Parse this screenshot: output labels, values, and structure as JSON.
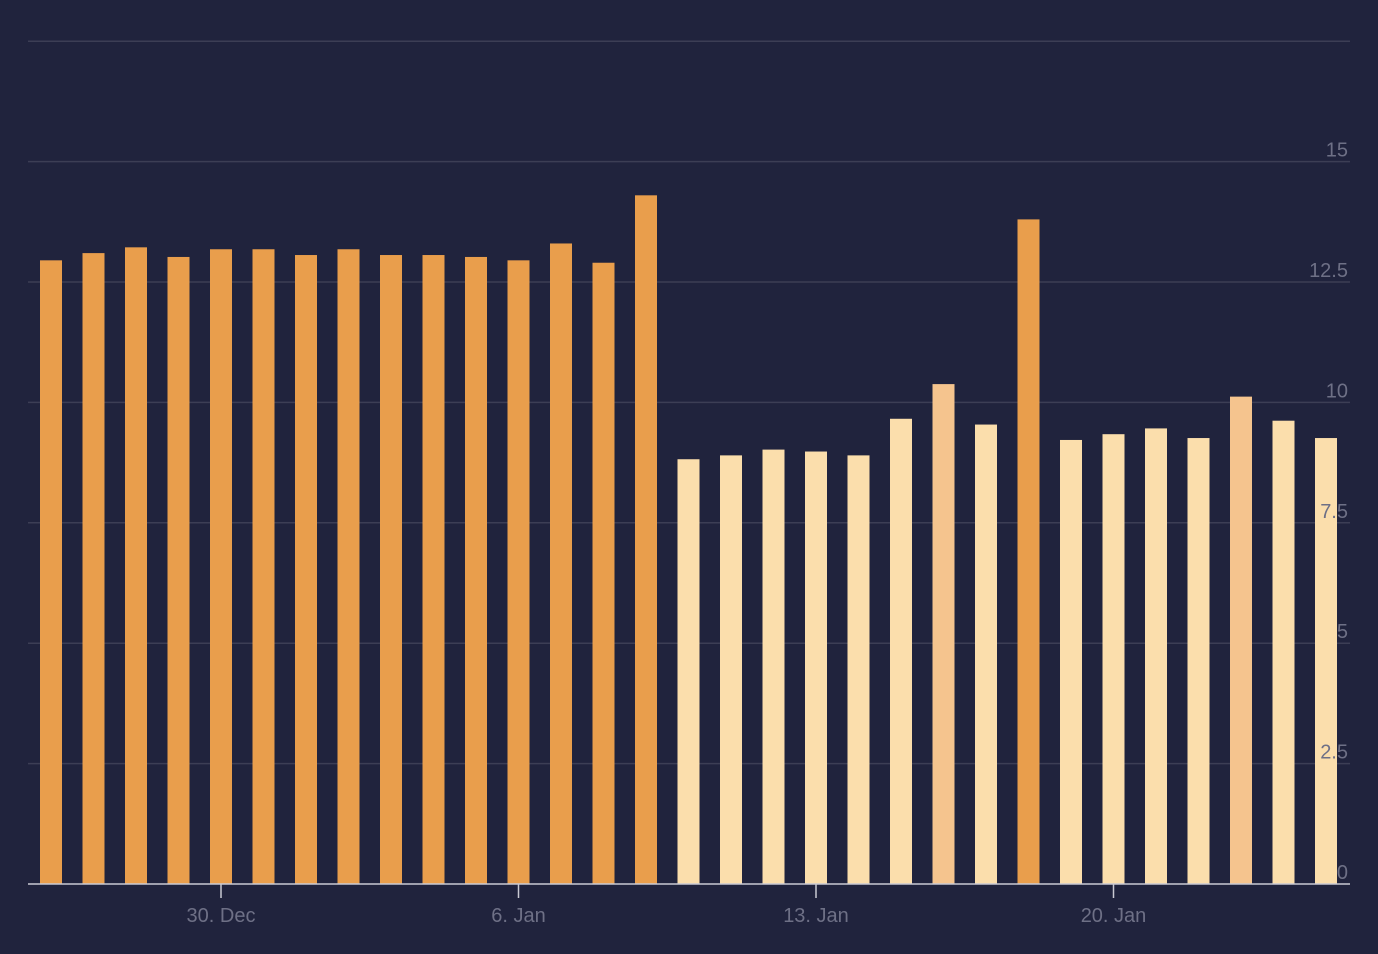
{
  "chart_data": {
    "type": "bar",
    "title": "",
    "xlabel": "",
    "ylabel": "",
    "ylim": [
      0,
      17.5
    ],
    "y_ticks": [
      0,
      2.5,
      5,
      7.5,
      10,
      12.5,
      15
    ],
    "y_tick_labels": [
      "0",
      "2.5",
      "5",
      "7.5",
      "10",
      "12.5",
      "15"
    ],
    "x_start": "2024-12-26",
    "x_tick_labels": [
      {
        "date": "2024-12-30",
        "label": "30. Dec"
      },
      {
        "date": "2025-01-06",
        "label": "6. Jan"
      },
      {
        "date": "2025-01-13",
        "label": "13. Jan"
      },
      {
        "date": "2025-01-20",
        "label": "20. Jan"
      }
    ],
    "grid": true,
    "legend": "none",
    "colors": {
      "background": "#20233d",
      "dark": "#e99e4c",
      "medium": "#f5c48e",
      "light": "#fbdeac"
    },
    "bars": [
      {
        "date": "2024-12-26",
        "value": 12.95,
        "shade": "dark"
      },
      {
        "date": "2024-12-27",
        "value": 13.1,
        "shade": "dark"
      },
      {
        "date": "2024-12-28",
        "value": 13.22,
        "shade": "dark"
      },
      {
        "date": "2024-12-29",
        "value": 13.02,
        "shade": "dark"
      },
      {
        "date": "2024-12-30",
        "value": 13.18,
        "shade": "dark"
      },
      {
        "date": "2024-12-31",
        "value": 13.18,
        "shade": "dark"
      },
      {
        "date": "2025-01-01",
        "value": 13.06,
        "shade": "dark"
      },
      {
        "date": "2025-01-02",
        "value": 13.18,
        "shade": "dark"
      },
      {
        "date": "2025-01-03",
        "value": 13.06,
        "shade": "dark"
      },
      {
        "date": "2025-01-04",
        "value": 13.06,
        "shade": "dark"
      },
      {
        "date": "2025-01-05",
        "value": 13.02,
        "shade": "dark"
      },
      {
        "date": "2025-01-06",
        "value": 12.95,
        "shade": "dark"
      },
      {
        "date": "2025-01-07",
        "value": 13.3,
        "shade": "dark"
      },
      {
        "date": "2025-01-08",
        "value": 12.9,
        "shade": "dark"
      },
      {
        "date": "2025-01-09",
        "value": 14.3,
        "shade": "dark"
      },
      {
        "date": "2025-01-10",
        "value": 8.82,
        "shade": "light"
      },
      {
        "date": "2025-01-11",
        "value": 8.9,
        "shade": "light"
      },
      {
        "date": "2025-01-12",
        "value": 9.02,
        "shade": "light"
      },
      {
        "date": "2025-01-13",
        "value": 8.98,
        "shade": "light"
      },
      {
        "date": "2025-01-14",
        "value": 8.9,
        "shade": "light"
      },
      {
        "date": "2025-01-15",
        "value": 9.66,
        "shade": "light"
      },
      {
        "date": "2025-01-16",
        "value": 10.38,
        "shade": "medium"
      },
      {
        "date": "2025-01-17",
        "value": 9.54,
        "shade": "light"
      },
      {
        "date": "2025-01-18",
        "value": 13.8,
        "shade": "dark"
      },
      {
        "date": "2025-01-19",
        "value": 9.22,
        "shade": "light"
      },
      {
        "date": "2025-01-20",
        "value": 9.34,
        "shade": "light"
      },
      {
        "date": "2025-01-21",
        "value": 9.46,
        "shade": "light"
      },
      {
        "date": "2025-01-22",
        "value": 9.26,
        "shade": "light"
      },
      {
        "date": "2025-01-23",
        "value": 10.12,
        "shade": "medium"
      },
      {
        "date": "2025-01-24",
        "value": 9.62,
        "shade": "light"
      },
      {
        "date": "2025-01-25",
        "value": 9.26,
        "shade": "light"
      }
    ]
  }
}
